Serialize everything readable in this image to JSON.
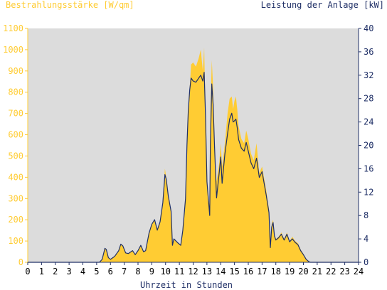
{
  "chart_data": {
    "type": "area",
    "left_axis_title": "Bestrahlungsstärke [W/qm]",
    "right_axis_title": "Leistung der Anlage [kW]",
    "xlabel": "Uhrzeit in Stunden",
    "x_ticks": [
      "0",
      "1",
      "2",
      "3",
      "4",
      "5",
      "6",
      "7",
      "8",
      "9",
      "10",
      "11",
      "12",
      "13",
      "14",
      "15",
      "16",
      "17",
      "18",
      "19",
      "20",
      "21",
      "22",
      "23",
      "24"
    ],
    "y_left_ticks": [
      "0",
      "100",
      "200",
      "300",
      "400",
      "500",
      "600",
      "700",
      "800",
      "900",
      "1000",
      "1100"
    ],
    "y_right_ticks": [
      "0",
      "4",
      "8",
      "12",
      "16",
      "20",
      "24",
      "28",
      "32",
      "36",
      "40"
    ],
    "xlim": [
      0,
      24
    ],
    "ylim_left": [
      0,
      1100
    ],
    "ylim_right": [
      0,
      40
    ],
    "grid": false,
    "series": [
      {
        "name": "Bestrahlungsstärke [W/qm]",
        "axis": "left",
        "style": "area",
        "color": "#ffcc33",
        "points": [
          [
            0,
            0
          ],
          [
            5.2,
            0
          ],
          [
            5.4,
            10
          ],
          [
            5.6,
            65
          ],
          [
            5.7,
            60
          ],
          [
            5.85,
            20
          ],
          [
            6.0,
            15
          ],
          [
            6.3,
            30
          ],
          [
            6.6,
            55
          ],
          [
            6.75,
            85
          ],
          [
            6.9,
            75
          ],
          [
            7.1,
            45
          ],
          [
            7.3,
            40
          ],
          [
            7.6,
            55
          ],
          [
            7.8,
            35
          ],
          [
            8.0,
            55
          ],
          [
            8.2,
            80
          ],
          [
            8.4,
            50
          ],
          [
            8.55,
            55
          ],
          [
            8.8,
            140
          ],
          [
            9.0,
            180
          ],
          [
            9.2,
            200
          ],
          [
            9.4,
            150
          ],
          [
            9.6,
            190
          ],
          [
            9.8,
            280
          ],
          [
            9.95,
            440
          ],
          [
            10.05,
            400
          ],
          [
            10.2,
            310
          ],
          [
            10.4,
            240
          ],
          [
            10.5,
            80
          ],
          [
            10.6,
            110
          ],
          [
            10.9,
            90
          ],
          [
            11.1,
            80
          ],
          [
            11.25,
            150
          ],
          [
            11.45,
            300
          ],
          [
            11.55,
            550
          ],
          [
            11.65,
            720
          ],
          [
            11.75,
            820
          ],
          [
            11.85,
            930
          ],
          [
            12.0,
            940
          ],
          [
            12.2,
            920
          ],
          [
            12.4,
            960
          ],
          [
            12.55,
            1000
          ],
          [
            12.7,
            900
          ],
          [
            12.8,
            1010
          ],
          [
            12.9,
            700
          ],
          [
            13.0,
            380
          ],
          [
            13.1,
            300
          ],
          [
            13.2,
            270
          ],
          [
            13.25,
            700
          ],
          [
            13.35,
            950
          ],
          [
            13.45,
            820
          ],
          [
            13.55,
            550
          ],
          [
            13.7,
            380
          ],
          [
            13.9,
            470
          ],
          [
            14.0,
            560
          ],
          [
            14.1,
            450
          ],
          [
            14.3,
            560
          ],
          [
            14.5,
            700
          ],
          [
            14.65,
            770
          ],
          [
            14.8,
            780
          ],
          [
            14.9,
            720
          ],
          [
            15.0,
            760
          ],
          [
            15.1,
            780
          ],
          [
            15.2,
            720
          ],
          [
            15.3,
            640
          ],
          [
            15.5,
            580
          ],
          [
            15.7,
            560
          ],
          [
            15.85,
            620
          ],
          [
            16.0,
            580
          ],
          [
            16.2,
            510
          ],
          [
            16.4,
            480
          ],
          [
            16.6,
            560
          ],
          [
            16.8,
            420
          ],
          [
            17.0,
            450
          ],
          [
            17.3,
            340
          ],
          [
            17.5,
            250
          ],
          [
            17.6,
            80
          ],
          [
            17.7,
            180
          ],
          [
            17.8,
            200
          ],
          [
            17.9,
            130
          ],
          [
            18.0,
            110
          ],
          [
            18.2,
            120
          ],
          [
            18.4,
            140
          ],
          [
            18.6,
            110
          ],
          [
            18.8,
            140
          ],
          [
            19.0,
            100
          ],
          [
            19.2,
            120
          ],
          [
            19.4,
            100
          ],
          [
            19.6,
            90
          ],
          [
            19.8,
            60
          ],
          [
            20.0,
            40
          ],
          [
            20.2,
            15
          ],
          [
            20.4,
            5
          ],
          [
            20.5,
            0
          ],
          [
            24,
            0
          ]
        ]
      },
      {
        "name": "Leistung der Anlage [kW]",
        "axis": "right",
        "style": "line",
        "color": "#1f2f66",
        "points": [
          [
            0,
            0
          ],
          [
            5.2,
            0
          ],
          [
            5.4,
            0.5
          ],
          [
            5.6,
            2.4
          ],
          [
            5.7,
            2.2
          ],
          [
            5.85,
            0.8
          ],
          [
            6.0,
            0.5
          ],
          [
            6.3,
            1.0
          ],
          [
            6.6,
            2.0
          ],
          [
            6.75,
            3.1
          ],
          [
            6.9,
            2.8
          ],
          [
            7.1,
            1.6
          ],
          [
            7.3,
            1.5
          ],
          [
            7.6,
            2.0
          ],
          [
            7.8,
            1.3
          ],
          [
            8.0,
            2.0
          ],
          [
            8.2,
            2.9
          ],
          [
            8.4,
            1.8
          ],
          [
            8.55,
            2.0
          ],
          [
            8.8,
            5.0
          ],
          [
            9.0,
            6.5
          ],
          [
            9.2,
            7.3
          ],
          [
            9.4,
            5.5
          ],
          [
            9.6,
            6.9
          ],
          [
            9.8,
            10.2
          ],
          [
            9.95,
            15.0
          ],
          [
            10.05,
            14.2
          ],
          [
            10.2,
            11.3
          ],
          [
            10.4,
            8.7
          ],
          [
            10.5,
            2.9
          ],
          [
            10.6,
            4.0
          ],
          [
            10.9,
            3.3
          ],
          [
            11.1,
            2.9
          ],
          [
            11.25,
            5.5
          ],
          [
            11.45,
            10.9
          ],
          [
            11.55,
            20.0
          ],
          [
            11.65,
            26.0
          ],
          [
            11.75,
            29.5
          ],
          [
            11.85,
            31.5
          ],
          [
            12.0,
            31.0
          ],
          [
            12.2,
            30.8
          ],
          [
            12.4,
            31.5
          ],
          [
            12.55,
            32.0
          ],
          [
            12.7,
            31.0
          ],
          [
            12.8,
            32.5
          ],
          [
            12.9,
            25.0
          ],
          [
            13.0,
            13.8
          ],
          [
            13.1,
            10.9
          ],
          [
            13.2,
            8.0
          ],
          [
            13.25,
            20.0
          ],
          [
            13.35,
            30.5
          ],
          [
            13.45,
            27.0
          ],
          [
            13.55,
            20.0
          ],
          [
            13.7,
            11.0
          ],
          [
            13.9,
            15.5
          ],
          [
            14.0,
            18.0
          ],
          [
            14.1,
            13.5
          ],
          [
            14.3,
            18.5
          ],
          [
            14.5,
            22.0
          ],
          [
            14.65,
            24.5
          ],
          [
            14.8,
            25.5
          ],
          [
            14.9,
            24.0
          ],
          [
            15.0,
            24.2
          ],
          [
            15.1,
            24.5
          ],
          [
            15.2,
            23.0
          ],
          [
            15.3,
            21.0
          ],
          [
            15.5,
            19.5
          ],
          [
            15.7,
            19.0
          ],
          [
            15.85,
            20.5
          ],
          [
            16.0,
            19.0
          ],
          [
            16.2,
            17.0
          ],
          [
            16.4,
            16.0
          ],
          [
            16.6,
            17.8
          ],
          [
            16.8,
            14.5
          ],
          [
            17.0,
            15.5
          ],
          [
            17.3,
            11.5
          ],
          [
            17.5,
            8.5
          ],
          [
            17.6,
            2.5
          ],
          [
            17.7,
            6.0
          ],
          [
            17.8,
            6.8
          ],
          [
            17.9,
            4.5
          ],
          [
            18.0,
            3.8
          ],
          [
            18.2,
            4.2
          ],
          [
            18.4,
            4.8
          ],
          [
            18.6,
            3.8
          ],
          [
            18.8,
            4.8
          ],
          [
            19.0,
            3.5
          ],
          [
            19.2,
            4.0
          ],
          [
            19.4,
            3.4
          ],
          [
            19.6,
            3.0
          ],
          [
            19.8,
            2.0
          ],
          [
            20.0,
            1.3
          ],
          [
            20.2,
            0.5
          ],
          [
            20.4,
            0.1
          ],
          [
            20.5,
            0
          ],
          [
            24,
            0
          ]
        ]
      }
    ]
  },
  "colors": {
    "plot_bg": "#dcdcdc",
    "left_axis": "#ffcc33",
    "right_axis": "#1f2f66",
    "text_dark": "#1f2f66"
  }
}
